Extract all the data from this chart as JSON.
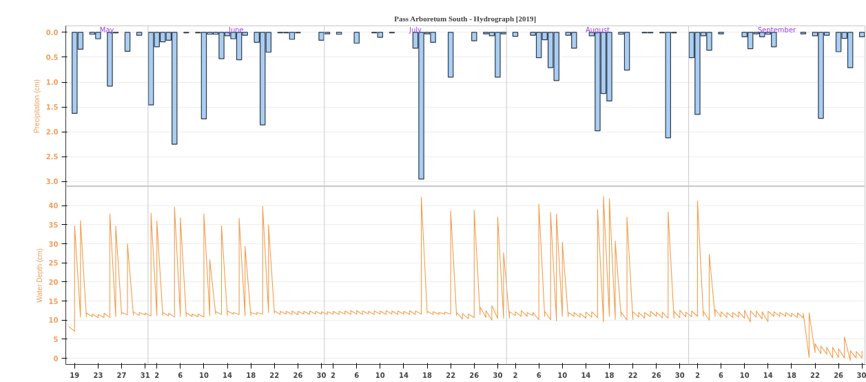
{
  "chart_data": [
    {
      "type": "bar",
      "title": "Pass Arboretum South - Hydrograph [2019]",
      "ylabel": "Precipitation (cm)",
      "series": [
        {
          "color": "#aacdf2",
          "x": [
            "2019-05-19",
            "2019-05-20",
            "2019-05-22",
            "2019-05-23",
            "2019-05-25",
            "2019-05-26",
            "2019-05-28",
            "2019-05-30",
            "2019-06-01",
            "2019-06-02",
            "2019-06-03",
            "2019-06-04",
            "2019-06-05",
            "2019-06-07",
            "2019-06-09",
            "2019-06-10",
            "2019-06-11",
            "2019-06-12",
            "2019-06-13",
            "2019-06-14",
            "2019-06-15",
            "2019-06-16",
            "2019-06-17",
            "2019-06-19",
            "2019-06-20",
            "2019-06-21",
            "2019-06-23",
            "2019-06-24",
            "2019-06-25",
            "2019-06-26",
            "2019-06-30",
            "2019-07-01",
            "2019-07-03",
            "2019-07-06",
            "2019-07-09",
            "2019-07-10",
            "2019-07-12",
            "2019-07-16",
            "2019-07-17",
            "2019-07-18",
            "2019-07-19",
            "2019-07-22",
            "2019-07-26",
            "2019-07-28",
            "2019-07-29",
            "2019-07-30",
            "2019-07-31",
            "2019-08-02",
            "2019-08-05",
            "2019-08-06",
            "2019-08-07",
            "2019-08-08",
            "2019-08-09",
            "2019-08-11",
            "2019-08-12",
            "2019-08-15",
            "2019-08-16",
            "2019-08-17",
            "2019-08-18",
            "2019-08-20",
            "2019-08-21",
            "2019-08-24",
            "2019-08-25",
            "2019-08-27",
            "2019-08-28",
            "2019-08-29",
            "2019-09-01",
            "2019-09-02",
            "2019-09-03",
            "2019-09-04",
            "2019-09-06",
            "2019-09-10",
            "2019-09-11",
            "2019-09-12",
            "2019-09-13",
            "2019-09-14",
            "2019-09-15",
            "2019-09-20",
            "2019-09-22",
            "2019-09-23",
            "2019-09-24",
            "2019-09-26",
            "2019-09-27",
            "2019-09-28",
            "2019-09-30"
          ],
          "values": [
            1.63,
            0.34,
            0.04,
            0.13,
            1.08,
            0.01,
            0.38,
            0.06,
            1.46,
            0.29,
            0.19,
            0.16,
            2.25,
            0.01,
            0.01,
            1.74,
            0.04,
            0.04,
            0.53,
            0.07,
            0.13,
            0.55,
            0.06,
            0.2,
            1.86,
            0.4,
            0.01,
            0.01,
            0.14,
            0.01,
            0.16,
            0.03,
            0.04,
            0.22,
            0.01,
            0.1,
            0.01,
            0.32,
            2.95,
            0.03,
            0.2,
            0.9,
            0.17,
            0.03,
            0.07,
            0.9,
            0.03,
            0.08,
            0.06,
            0.51,
            0.15,
            0.71,
            0.97,
            0.06,
            0.32,
            0.07,
            1.98,
            1.23,
            1.38,
            0.04,
            0.76,
            0.01,
            0.01,
            0.01,
            2.12,
            0.01,
            0.51,
            1.65,
            0.07,
            0.36,
            0.03,
            0.09,
            0.33,
            0.03,
            0.09,
            0.04,
            0.29,
            0.03,
            0.07,
            1.73,
            0.06,
            0.39,
            0.12,
            0.71,
            0.09
          ]
        }
      ],
      "xlim": [
        "2019-05-17T12:00",
        "2019-09-30T12:00"
      ],
      "ylim": [
        3.1,
        -0.13
      ],
      "yticks": [
        {
          "value": 0,
          "label": "0.0"
        },
        0.5,
        {
          "value": 1,
          "label": "1.0"
        },
        1.5,
        {
          "value": 2,
          "label": "2.0"
        },
        2.5,
        {
          "value": 3,
          "label": "3.0"
        }
      ],
      "ref_lines": [
        {
          "axis": "x",
          "value": "2019-05-31T12:00",
          "color": "#c8c8c8"
        },
        {
          "axis": "x",
          "value": "2019-06-30T12:00",
          "color": "#c8c8c8"
        },
        {
          "axis": "x",
          "value": "2019-07-31T12:00",
          "color": "#c8c8c8"
        },
        {
          "axis": "x",
          "value": "2019-08-31T12:00",
          "color": "#c8c8c8"
        }
      ],
      "annotations": [
        "May",
        "June",
        "July",
        "August",
        "September"
      ],
      "grid": "y",
      "tick_labels": "y"
    },
    {
      "type": "line",
      "ylabel": "Water Depth (cm)",
      "series": [
        {
          "color": "#f39c4a",
          "x": [
            "2019-05-18",
            "2019-05-19",
            "2019-05-19",
            "2019-05-20",
            "2019-05-20",
            "2019-05-21",
            "2019-05-21",
            "2019-05-22",
            "2019-05-22",
            "2019-05-23",
            "2019-05-23",
            "2019-05-24",
            "2019-05-24",
            "2019-05-25",
            "2019-05-25",
            "2019-05-26",
            "2019-05-26",
            "2019-05-27",
            "2019-05-27",
            "2019-05-28",
            "2019-05-28",
            "2019-05-29",
            "2019-05-29",
            "2019-05-30",
            "2019-05-30",
            "2019-05-31",
            "2019-05-31",
            "2019-06-01",
            "2019-06-01",
            "2019-06-02",
            "2019-06-02",
            "2019-06-03",
            "2019-06-03",
            "2019-06-04",
            "2019-06-04",
            "2019-06-05",
            "2019-06-05",
            "2019-06-06",
            "2019-06-06",
            "2019-06-07",
            "2019-06-07",
            "2019-06-08",
            "2019-06-08",
            "2019-06-09",
            "2019-06-09",
            "2019-06-10",
            "2019-06-10",
            "2019-06-11",
            "2019-06-11",
            "2019-06-12",
            "2019-06-12",
            "2019-06-13",
            "2019-06-13",
            "2019-06-14",
            "2019-06-14",
            "2019-06-15",
            "2019-06-15",
            "2019-06-16",
            "2019-06-16",
            "2019-06-17",
            "2019-06-17",
            "2019-06-18",
            "2019-06-18",
            "2019-06-19",
            "2019-06-19",
            "2019-06-20",
            "2019-06-20",
            "2019-06-21",
            "2019-06-21",
            "2019-06-22",
            "2019-06-22",
            "2019-06-23",
            "2019-06-23",
            "2019-06-24",
            "2019-06-24",
            "2019-06-25",
            "2019-06-25",
            "2019-06-26",
            "2019-06-26",
            "2019-06-27",
            "2019-06-27",
            "2019-06-28",
            "2019-06-28",
            "2019-06-29",
            "2019-06-29",
            "2019-06-30",
            "2019-06-30",
            "2019-07-01",
            "2019-07-01",
            "2019-07-02",
            "2019-07-02",
            "2019-07-03",
            "2019-07-03",
            "2019-07-04",
            "2019-07-04",
            "2019-07-05",
            "2019-07-05",
            "2019-07-06",
            "2019-07-06",
            "2019-07-07",
            "2019-07-07",
            "2019-07-08",
            "2019-07-08",
            "2019-07-09",
            "2019-07-09",
            "2019-07-10",
            "2019-07-10",
            "2019-07-11",
            "2019-07-11",
            "2019-07-12",
            "2019-07-12",
            "2019-07-13",
            "2019-07-13",
            "2019-07-14",
            "2019-07-14",
            "2019-07-15",
            "2019-07-15",
            "2019-07-16",
            "2019-07-16",
            "2019-07-17",
            "2019-07-17",
            "2019-07-18",
            "2019-07-18",
            "2019-07-19",
            "2019-07-19",
            "2019-07-20",
            "2019-07-20",
            "2019-07-21",
            "2019-07-21",
            "2019-07-22",
            "2019-07-22",
            "2019-07-23",
            "2019-07-23",
            "2019-07-24",
            "2019-07-24",
            "2019-07-25",
            "2019-07-25",
            "2019-07-26",
            "2019-07-26",
            "2019-07-27",
            "2019-07-27",
            "2019-07-28",
            "2019-07-28",
            "2019-07-29",
            "2019-07-29",
            "2019-07-30",
            "2019-07-30",
            "2019-07-31",
            "2019-07-31",
            "2019-08-01",
            "2019-08-01",
            "2019-08-02",
            "2019-08-02",
            "2019-08-03",
            "2019-08-03",
            "2019-08-04",
            "2019-08-04",
            "2019-08-05",
            "2019-08-05",
            "2019-08-06",
            "2019-08-06",
            "2019-08-07",
            "2019-08-07",
            "2019-08-08",
            "2019-08-08",
            "2019-08-09",
            "2019-08-09",
            "2019-08-10",
            "2019-08-10",
            "2019-08-11",
            "2019-08-11",
            "2019-08-12",
            "2019-08-12",
            "2019-08-13",
            "2019-08-13",
            "2019-08-14",
            "2019-08-14",
            "2019-08-15",
            "2019-08-15",
            "2019-08-16",
            "2019-08-16",
            "2019-08-17",
            "2019-08-17",
            "2019-08-18",
            "2019-08-18",
            "2019-08-19",
            "2019-08-19",
            "2019-08-20",
            "2019-08-20",
            "2019-08-21",
            "2019-08-21",
            "2019-08-22",
            "2019-08-22",
            "2019-08-23",
            "2019-08-23",
            "2019-08-24",
            "2019-08-24",
            "2019-08-25",
            "2019-08-25",
            "2019-08-26",
            "2019-08-26",
            "2019-08-27",
            "2019-08-27",
            "2019-08-28",
            "2019-08-28",
            "2019-08-29",
            "2019-08-29",
            "2019-08-30",
            "2019-08-30",
            "2019-08-31",
            "2019-08-31",
            "2019-09-01",
            "2019-09-01",
            "2019-09-02",
            "2019-09-02",
            "2019-09-03",
            "2019-09-03",
            "2019-09-04",
            "2019-09-04",
            "2019-09-05",
            "2019-09-05",
            "2019-09-06",
            "2019-09-06",
            "2019-09-07",
            "2019-09-07",
            "2019-09-08",
            "2019-09-08",
            "2019-09-09",
            "2019-09-09",
            "2019-09-10",
            "2019-09-10",
            "2019-09-11",
            "2019-09-11",
            "2019-09-12",
            "2019-09-12",
            "2019-09-13",
            "2019-09-13",
            "2019-09-14",
            "2019-09-14",
            "2019-09-15",
            "2019-09-15",
            "2019-09-16",
            "2019-09-16",
            "2019-09-17",
            "2019-09-17",
            "2019-09-18",
            "2019-09-18",
            "2019-09-19",
            "2019-09-19",
            "2019-09-20",
            "2019-09-20",
            "2019-09-21",
            "2019-09-21",
            "2019-09-22",
            "2019-09-22",
            "2019-09-23",
            "2019-09-23",
            "2019-09-24",
            "2019-09-24",
            "2019-09-25",
            "2019-09-25",
            "2019-09-26",
            "2019-09-26",
            "2019-09-27",
            "2019-09-27",
            "2019-09-28",
            "2019-09-28",
            "2019-09-29",
            "2019-09-29",
            "2019-09-30",
            "2019-09-30"
          ],
          "values": [
            8.3,
            7.1,
            34.7,
            10.8,
            36.1,
            10.9,
            11.9,
            10.9,
            11.6,
            10.7,
            11.5,
            10.7,
            11.8,
            10.7,
            37.8,
            10.9,
            34.7,
            11.5,
            12.0,
            11.4,
            30.0,
            11.3,
            12.2,
            11.2,
            12.0,
            11.4,
            11.8,
            11.1,
            38.0,
            11.2,
            36.0,
            11.3,
            12.0,
            11.1,
            11.8,
            10.8,
            39.6,
            11.0,
            36.8,
            11.0,
            11.9,
            11.0,
            11.6,
            10.9,
            11.6,
            10.8,
            37.8,
            11.2,
            25.8,
            11.6,
            12.2,
            11.5,
            34.7,
            11.2,
            12.4,
            11.6,
            12.0,
            11.5,
            36.7,
            11.2,
            29.3,
            11.2,
            12.0,
            11.5,
            12.0,
            11.6,
            39.8,
            12.0,
            34.9,
            11.8,
            12.4,
            11.5,
            12.3,
            11.6,
            12.3,
            11.5,
            12.4,
            11.4,
            12.3,
            11.6,
            12.3,
            11.5,
            12.4,
            11.6,
            12.3,
            11.6,
            12.2,
            11.5,
            12.2,
            11.6,
            12.3,
            11.5,
            12.3,
            11.6,
            12.4,
            11.5,
            12.5,
            11.6,
            12.5,
            11.5,
            12.4,
            11.6,
            12.3,
            11.5,
            12.4,
            11.6,
            12.4,
            11.5,
            12.5,
            11.6,
            12.4,
            11.5,
            12.4,
            11.6,
            12.3,
            11.5,
            12.5,
            11.5,
            12.4,
            11.6,
            42.2,
            11.8,
            12.3,
            11.5,
            12.2,
            11.5,
            12.0,
            11.6,
            12.1,
            11.6,
            38.6,
            11.2,
            12.0,
            10.3,
            11.7,
            10.4,
            11.6,
            10.7,
            38.8,
            11.4,
            13.4,
            10.7,
            12.5,
            10.0,
            13.8,
            10.5,
            37.0,
            10.5,
            27.6,
            10.5,
            12.2,
            11.2,
            12.2,
            11.0,
            12.5,
            11.0,
            12.0,
            11.2,
            12.0,
            10.1,
            40.4,
            11.0,
            12.3,
            10.1,
            38.2,
            9.8,
            37.8,
            11.0,
            30.4,
            10.9,
            12.0,
            11.0,
            12.0,
            10.8,
            11.8,
            10.5,
            12.1,
            10.8,
            12.2,
            10.7,
            39.0,
            9.5,
            42.4,
            11.0,
            41.8,
            10.2,
            30.7,
            11.0,
            12.1,
            10.0,
            37.0,
            10.2,
            12.2,
            10.8,
            12.0,
            10.5,
            12.0,
            10.9,
            12.3,
            11.0,
            12.1,
            10.6,
            12.1,
            10.5,
            38.3,
            10.5,
            12.3,
            10.6,
            12.6,
            10.8,
            12.1,
            10.9,
            12.4,
            11.0,
            41.2,
            11.0,
            12.3,
            10.0,
            27.3,
            11.0,
            12.8,
            10.9,
            12.2,
            10.7,
            12.0,
            10.7,
            12.0,
            10.8,
            12.2,
            10.5,
            12.6,
            9.5,
            12.4,
            10.8,
            12.4,
            10.3,
            12.2,
            9.6,
            12.3,
            11.0,
            12.2,
            11.0,
            12.0,
            11.0,
            12.0,
            10.9,
            11.8,
            10.7,
            11.9,
            10.6,
            11.8,
            0.2,
            11.9,
            1.5,
            3.8,
            1.2,
            3.2,
            1.1,
            2.9,
            0.1,
            2.9,
            0.2,
            2.5,
            0.1,
            5.6,
            -0.6,
            2.0,
            0.1,
            1.8,
            0.1,
            1.9
          ]
        }
      ],
      "xlim": [
        "2019-05-17T12:00",
        "2019-09-30T12:00"
      ],
      "xticks": [
        {
          "value": "2019-05-19",
          "label": "19"
        },
        {
          "value": "2019-05-23",
          "label": "23"
        },
        {
          "value": "2019-05-27",
          "label": "27"
        },
        {
          "value": "2019-05-31",
          "label": "31"
        },
        {
          "value": "2019-06-02",
          "label": "2"
        },
        {
          "value": "2019-06-06",
          "label": "6"
        },
        {
          "value": "2019-06-10",
          "label": "10"
        },
        {
          "value": "2019-06-14",
          "label": "14"
        },
        {
          "value": "2019-06-18",
          "label": "18"
        },
        {
          "value": "2019-06-22",
          "label": "22"
        },
        {
          "value": "2019-06-26",
          "label": "26"
        },
        {
          "value": "2019-06-30",
          "label": "30"
        },
        {
          "value": "2019-07-02",
          "label": "2"
        },
        {
          "value": "2019-07-06",
          "label": "6"
        },
        {
          "value": "2019-07-10",
          "label": "10"
        },
        {
          "value": "2019-07-14",
          "label": "14"
        },
        {
          "value": "2019-07-18",
          "label": "18"
        },
        {
          "value": "2019-07-22",
          "label": "22"
        },
        {
          "value": "2019-07-26",
          "label": "26"
        },
        {
          "value": "2019-07-30",
          "label": "30"
        },
        {
          "value": "2019-08-02",
          "label": "2"
        },
        {
          "value": "2019-08-06",
          "label": "6"
        },
        {
          "value": "2019-08-10",
          "label": "10"
        },
        {
          "value": "2019-08-14",
          "label": "14"
        },
        {
          "value": "2019-08-18",
          "label": "18"
        },
        {
          "value": "2019-08-22",
          "label": "22"
        },
        {
          "value": "2019-08-26",
          "label": "26"
        },
        {
          "value": "2019-08-30",
          "label": "30"
        },
        {
          "value": "2019-09-02",
          "label": "2"
        },
        {
          "value": "2019-09-06",
          "label": "6"
        },
        {
          "value": "2019-09-10",
          "label": "10"
        },
        {
          "value": "2019-09-14",
          "label": "14"
        },
        {
          "value": "2019-09-18",
          "label": "18"
        },
        {
          "value": "2019-09-22",
          "label": "22"
        },
        {
          "value": "2019-09-26",
          "label": "26"
        },
        {
          "value": "2019-09-30",
          "label": "30"
        }
      ],
      "ylim": [
        -1.6,
        45
      ],
      "yticks": [
        0,
        5,
        10,
        15,
        20,
        25,
        30,
        35,
        40
      ],
      "ref_lines": [
        {
          "axis": "x",
          "value": "2019-05-31T12:00",
          "color": "#c8c8c8"
        },
        {
          "axis": "x",
          "value": "2019-06-30T12:00",
          "color": "#c8c8c8"
        },
        {
          "axis": "x",
          "value": "2019-07-31T12:00",
          "color": "#c8c8c8"
        },
        {
          "axis": "x",
          "value": "2019-08-31T12:00",
          "color": "#c8c8c8"
        }
      ],
      "grid": "y"
    }
  ]
}
